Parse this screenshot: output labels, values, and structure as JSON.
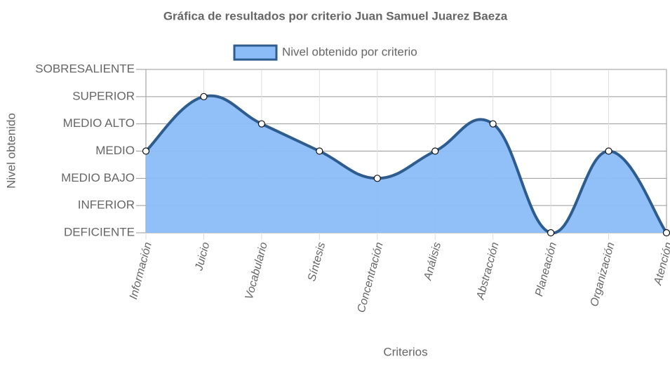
{
  "chart_data": {
    "type": "line",
    "title": "Gráfica de resultados por criterio Juan Samuel Juarez Baeza",
    "x_label": "Criterios",
    "y_label": "Nivel obtenido",
    "categories": [
      "Información",
      "Juicio",
      "Vocabulario",
      "Síntesis",
      "Concentración",
      "Análisis",
      "Abstracción",
      "Planeación",
      "Organización",
      "Atención"
    ],
    "series": [
      {
        "name": "Nivel obtenido por criterio",
        "color": "#2e5c8e",
        "fill": "#8bbcf7",
        "values": [
          3,
          5,
          4,
          3,
          2,
          3,
          4,
          0,
          3,
          0
        ]
      }
    ],
    "ylim": [
      0,
      6
    ],
    "yticks": [
      {
        "value": 0,
        "label": "DEFICIENTE"
      },
      {
        "value": 1,
        "label": "INFERIOR"
      },
      {
        "value": 2,
        "label": "MEDIO BAJO"
      },
      {
        "value": 3,
        "label": "MEDIO"
      },
      {
        "value": 4,
        "label": "MEDIO ALTO"
      },
      {
        "value": 5,
        "label": "SUPERIOR"
      },
      {
        "value": 6,
        "label": "SOBRESALIENTE"
      }
    ],
    "grid": true,
    "legend": "top"
  }
}
